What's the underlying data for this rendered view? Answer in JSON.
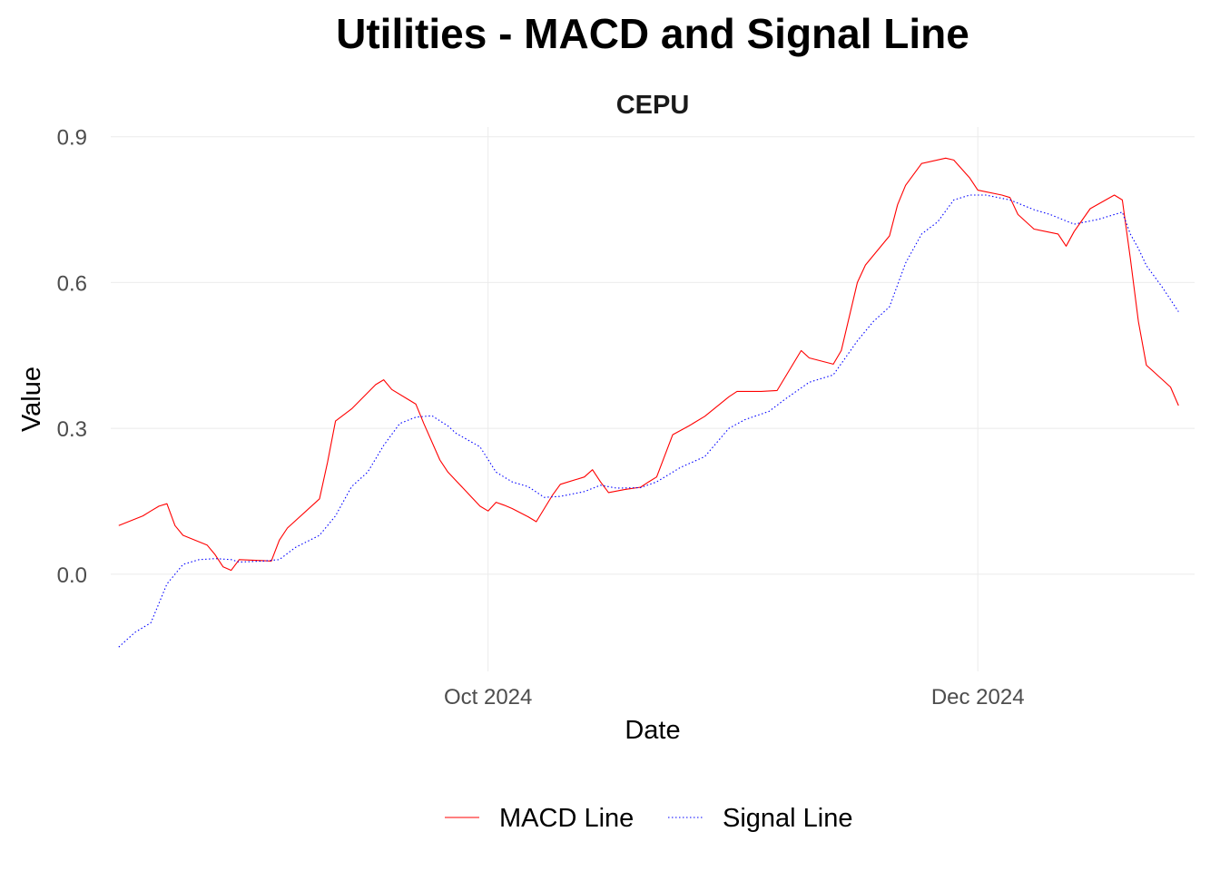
{
  "title": "Utilities - MACD and Signal Line",
  "chart_data": {
    "type": "line",
    "title": "Utilities - MACD and Signal Line",
    "subtitle": "CEPU",
    "xlabel": "Date",
    "ylabel": "Value",
    "xlim": [
      "2024-08-15",
      "2024-12-28"
    ],
    "ylim": [
      -0.2,
      0.92
    ],
    "x_ticks": [
      {
        "date": "2024-10-01",
        "label": "Oct 2024"
      },
      {
        "date": "2024-12-01",
        "label": "Dec 2024"
      }
    ],
    "y_ticks": [
      {
        "value": 0.0,
        "label": "0.0"
      },
      {
        "value": 0.3,
        "label": "0.3"
      },
      {
        "value": 0.6,
        "label": "0.6"
      },
      {
        "value": 0.9,
        "label": "0.9"
      }
    ],
    "grid": true,
    "legend_position": "bottom",
    "series": [
      {
        "name": "MACD Line",
        "color": "#ff0000",
        "dash": "solid",
        "points": [
          [
            "2024-08-16",
            0.1
          ],
          [
            "2024-08-19",
            0.12
          ],
          [
            "2024-08-20",
            0.13
          ],
          [
            "2024-08-21",
            0.14
          ],
          [
            "2024-08-22",
            0.145
          ],
          [
            "2024-08-23",
            0.1
          ],
          [
            "2024-08-24",
            0.08
          ],
          [
            "2024-08-27",
            0.06
          ],
          [
            "2024-08-28",
            0.04
          ],
          [
            "2024-08-29",
            0.015
          ],
          [
            "2024-08-30",
            0.008
          ],
          [
            "2024-08-31",
            0.03
          ],
          [
            "2024-09-03",
            0.028
          ],
          [
            "2024-09-04",
            0.027
          ],
          [
            "2024-09-05",
            0.07
          ],
          [
            "2024-09-06",
            0.095
          ],
          [
            "2024-09-10",
            0.155
          ],
          [
            "2024-09-11",
            0.23
          ],
          [
            "2024-09-12",
            0.315
          ],
          [
            "2024-09-14",
            0.34
          ],
          [
            "2024-09-17",
            0.39
          ],
          [
            "2024-09-18",
            0.4
          ],
          [
            "2024-09-19",
            0.38
          ],
          [
            "2024-09-21",
            0.36
          ],
          [
            "2024-09-22",
            0.35
          ],
          [
            "2024-09-23",
            0.31
          ],
          [
            "2024-09-25",
            0.235
          ],
          [
            "2024-09-26",
            0.21
          ],
          [
            "2024-09-28",
            0.175
          ],
          [
            "2024-09-30",
            0.14
          ],
          [
            "2024-10-01",
            0.13
          ],
          [
            "2024-10-02",
            0.148
          ],
          [
            "2024-10-03",
            0.142
          ],
          [
            "2024-10-04",
            0.135
          ],
          [
            "2024-10-06",
            0.118
          ],
          [
            "2024-10-07",
            0.108
          ],
          [
            "2024-10-09",
            0.162
          ],
          [
            "2024-10-10",
            0.185
          ],
          [
            "2024-10-13",
            0.2
          ],
          [
            "2024-10-14",
            0.215
          ],
          [
            "2024-10-15",
            0.19
          ],
          [
            "2024-10-16",
            0.168
          ],
          [
            "2024-10-18",
            0.174
          ],
          [
            "2024-10-20",
            0.179
          ],
          [
            "2024-10-21",
            0.19
          ],
          [
            "2024-10-22",
            0.2
          ],
          [
            "2024-10-24",
            0.287
          ],
          [
            "2024-10-26",
            0.305
          ],
          [
            "2024-10-28",
            0.325
          ],
          [
            "2024-10-31",
            0.365
          ],
          [
            "2024-11-01",
            0.376
          ],
          [
            "2024-11-04",
            0.376
          ],
          [
            "2024-11-06",
            0.378
          ],
          [
            "2024-11-09",
            0.46
          ],
          [
            "2024-11-10",
            0.445
          ],
          [
            "2024-11-13",
            0.432
          ],
          [
            "2024-11-14",
            0.46
          ],
          [
            "2024-11-16",
            0.6
          ],
          [
            "2024-11-17",
            0.636
          ],
          [
            "2024-11-20",
            0.696
          ],
          [
            "2024-11-21",
            0.76
          ],
          [
            "2024-11-22",
            0.8
          ],
          [
            "2024-11-24",
            0.845
          ],
          [
            "2024-11-27",
            0.856
          ],
          [
            "2024-11-28",
            0.852
          ],
          [
            "2024-11-30",
            0.815
          ],
          [
            "2024-12-01",
            0.79
          ],
          [
            "2024-12-04",
            0.78
          ],
          [
            "2024-12-05",
            0.775
          ],
          [
            "2024-12-06",
            0.74
          ],
          [
            "2024-12-08",
            0.71
          ],
          [
            "2024-12-11",
            0.7
          ],
          [
            "2024-12-12",
            0.675
          ],
          [
            "2024-12-13",
            0.705
          ],
          [
            "2024-12-15",
            0.752
          ],
          [
            "2024-12-18",
            0.78
          ],
          [
            "2024-12-19",
            0.77
          ],
          [
            "2024-12-20",
            0.65
          ],
          [
            "2024-12-21",
            0.52
          ],
          [
            "2024-12-22",
            0.43
          ],
          [
            "2024-12-23",
            0.415
          ],
          [
            "2024-12-25",
            0.385
          ],
          [
            "2024-12-26",
            0.347
          ]
        ]
      },
      {
        "name": "Signal Line",
        "color": "#0000ff",
        "dash": "dotted",
        "points": [
          [
            "2024-08-16",
            -0.15
          ],
          [
            "2024-08-18",
            -0.12
          ],
          [
            "2024-08-20",
            -0.1
          ],
          [
            "2024-08-21",
            -0.06
          ],
          [
            "2024-08-22",
            -0.02
          ],
          [
            "2024-08-23",
            0.0
          ],
          [
            "2024-08-24",
            0.02
          ],
          [
            "2024-08-26",
            0.03
          ],
          [
            "2024-08-28",
            0.032
          ],
          [
            "2024-08-30",
            0.03
          ],
          [
            "2024-08-31",
            0.025
          ],
          [
            "2024-09-03",
            0.027
          ],
          [
            "2024-09-05",
            0.03
          ],
          [
            "2024-09-07",
            0.055
          ],
          [
            "2024-09-10",
            0.08
          ],
          [
            "2024-09-12",
            0.12
          ],
          [
            "2024-09-14",
            0.18
          ],
          [
            "2024-09-16",
            0.21
          ],
          [
            "2024-09-18",
            0.265
          ],
          [
            "2024-09-20",
            0.31
          ],
          [
            "2024-09-22",
            0.323
          ],
          [
            "2024-09-24",
            0.326
          ],
          [
            "2024-09-26",
            0.305
          ],
          [
            "2024-09-27",
            0.29
          ],
          [
            "2024-09-30",
            0.262
          ],
          [
            "2024-10-02",
            0.21
          ],
          [
            "2024-10-04",
            0.19
          ],
          [
            "2024-10-06",
            0.18
          ],
          [
            "2024-10-08",
            0.158
          ],
          [
            "2024-10-10",
            0.16
          ],
          [
            "2024-10-13",
            0.17
          ],
          [
            "2024-10-15",
            0.183
          ],
          [
            "2024-10-17",
            0.177
          ],
          [
            "2024-10-20",
            0.178
          ],
          [
            "2024-10-22",
            0.19
          ],
          [
            "2024-10-25",
            0.22
          ],
          [
            "2024-10-28",
            0.242
          ],
          [
            "2024-10-31",
            0.3
          ],
          [
            "2024-11-02",
            0.318
          ],
          [
            "2024-11-05",
            0.335
          ],
          [
            "2024-11-07",
            0.36
          ],
          [
            "2024-11-10",
            0.395
          ],
          [
            "2024-11-13",
            0.41
          ],
          [
            "2024-11-16",
            0.48
          ],
          [
            "2024-11-18",
            0.52
          ],
          [
            "2024-11-20",
            0.55
          ],
          [
            "2024-11-22",
            0.64
          ],
          [
            "2024-11-24",
            0.7
          ],
          [
            "2024-11-26",
            0.725
          ],
          [
            "2024-11-28",
            0.77
          ],
          [
            "2024-11-30",
            0.78
          ],
          [
            "2024-12-02",
            0.78
          ],
          [
            "2024-12-05",
            0.77
          ],
          [
            "2024-12-08",
            0.75
          ],
          [
            "2024-12-10",
            0.74
          ],
          [
            "2024-12-13",
            0.72
          ],
          [
            "2024-12-16",
            0.73
          ],
          [
            "2024-12-19",
            0.745
          ],
          [
            "2024-12-20",
            0.7
          ],
          [
            "2024-12-21",
            0.67
          ],
          [
            "2024-12-22",
            0.635
          ],
          [
            "2024-12-24",
            0.59
          ],
          [
            "2024-12-26",
            0.54
          ]
        ]
      }
    ]
  }
}
